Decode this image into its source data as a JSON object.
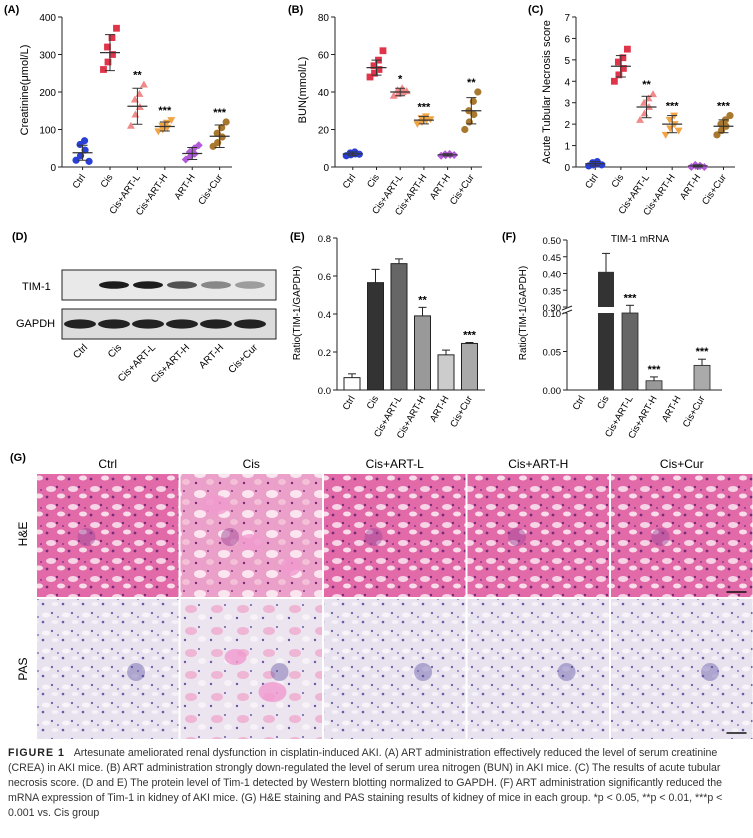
{
  "panelA": {
    "label": "(A)",
    "ylabel": "Creatinine(μmol/L)",
    "yticks": [
      "0",
      "100",
      "200",
      "300",
      "400"
    ],
    "groups": [
      "Ctrl",
      "Cis",
      "Cis+ART-L",
      "Cis+ART-H",
      "ART-H",
      "Cis+Cur"
    ],
    "sig": [
      "",
      "",
      "**",
      "***",
      "",
      "***"
    ]
  },
  "panelB": {
    "label": "(B)",
    "ylabel": "BUN(mmol/L)",
    "yticks": [
      "0",
      "20",
      "40",
      "60",
      "80"
    ],
    "groups": [
      "Ctrl",
      "Cis",
      "Cis+ART-L",
      "Cis+ART-H",
      "ART-H",
      "Cis+Cur"
    ],
    "sig": [
      "",
      "",
      "*",
      "***",
      "",
      "**"
    ]
  },
  "panelC": {
    "label": "(C)",
    "ylabel": "Acute Tubular Necrosis score",
    "yticks": [
      "0",
      "1",
      "2",
      "3",
      "4",
      "5",
      "6",
      "7"
    ],
    "groups": [
      "Ctrl",
      "Cis",
      "Cis+ART-L",
      "Cis+ART-H",
      "ART-H",
      "Cis+Cur"
    ],
    "sig": [
      "",
      "",
      "**",
      "***",
      "",
      "***"
    ]
  },
  "panelD": {
    "label": "(D)",
    "bands": [
      "TIM-1",
      "GAPDH"
    ],
    "lanes": [
      "Ctrl",
      "Cis",
      "Cis+ART-L",
      "Cis+ART-H",
      "ART-H",
      "Cis+Cur"
    ]
  },
  "panelE": {
    "label": "(E)",
    "ylabel": "Ratio(TIM-1/GAPDH)",
    "yticks": [
      "0.0",
      "0.2",
      "0.4",
      "0.6",
      "0.8"
    ],
    "groups": [
      "Ctrl",
      "Cis",
      "Cis+ART-L",
      "Cis+ART-H",
      "ART-H",
      "Cis+Cur"
    ],
    "sig": [
      "",
      "",
      "",
      "**",
      "",
      "***"
    ]
  },
  "panelF": {
    "label": "(F)",
    "title": "TIM-1 mRNA",
    "ylabel": "Ratio(TIM-1/GAPDH)",
    "yticks_low": [
      "0.00",
      "0.05",
      "0.10"
    ],
    "yticks_high": [
      "0.30",
      "0.35",
      "0.40",
      "0.45",
      "0.50"
    ],
    "groups": [
      "Ctrl",
      "Cis",
      "Cis+ART-L",
      "Cis+ART-H",
      "ART-H",
      "Cis+Cur"
    ],
    "sig": [
      "",
      "",
      "***",
      "***",
      "",
      "***"
    ]
  },
  "panelG": {
    "label": "(G)",
    "columns": [
      "Ctrl",
      "Cis",
      "Cis+ART-L",
      "Cis+ART-H",
      "Cis+Cur"
    ],
    "rows": [
      "H&E",
      "PAS"
    ]
  },
  "caption": {
    "fig": "FIGURE 1",
    "text": "Artesunate ameliorated renal dysfunction in cisplatin-induced AKI. (A) ART administration effectively reduced the level of serum creatinine (CREA) in AKI mice. (B) ART administration strongly down-regulated the level of serum urea nitrogen (BUN) in AKI mice. (C) The results of acute tubular necrosis score. (D and E) The protein level of Tim-1 detected by Western blotting normalized to GAPDH. (F) ART administration significantly reduced the mRNA expression of Tim-1 in kidney of AKI mice. (G) H&E staining and PAS staining results of kidney of mice in each group. *p < 0.05, **p < 0.01, ***p < 0.001 vs. Cis group"
  },
  "chart_data": [
    {
      "type": "scatter",
      "panel": "A",
      "ylabel": "Creatinine(μmol/L)",
      "ylim": [
        0,
        400
      ],
      "categories": [
        "Ctrl",
        "Cis",
        "Cis+ART-L",
        "Cis+ART-H",
        "ART-H",
        "Cis+Cur"
      ],
      "colors": [
        "#2a3fd6",
        "#e0344a",
        "#f08a8a",
        "#f0a444",
        "#b25bd8",
        "#a8782e"
      ],
      "means": [
        38,
        305,
        162,
        108,
        36,
        82
      ],
      "sd": [
        20,
        48,
        48,
        12,
        16,
        30
      ],
      "points": [
        [
          18,
          30,
          45,
          60,
          70,
          15
        ],
        [
          260,
          280,
          300,
          320,
          345,
          370
        ],
        [
          110,
          140,
          160,
          180,
          195,
          220
        ],
        [
          95,
          100,
          105,
          110,
          118,
          125
        ],
        [
          20,
          28,
          35,
          40,
          50,
          58
        ],
        [
          55,
          65,
          80,
          90,
          105,
          120
        ]
      ]
    },
    {
      "type": "scatter",
      "panel": "B",
      "ylabel": "BUN(mmol/L)",
      "ylim": [
        0,
        80
      ],
      "categories": [
        "Ctrl",
        "Cis",
        "Cis+ART-L",
        "Cis+ART-H",
        "ART-H",
        "Cis+Cur"
      ],
      "colors": [
        "#2a3fd6",
        "#e0344a",
        "#f08a8a",
        "#f0a444",
        "#b25bd8",
        "#a8782e"
      ],
      "means": [
        7,
        53,
        40,
        25,
        6.5,
        30
      ],
      "sd": [
        1,
        4,
        2,
        2,
        0.6,
        7
      ],
      "points": [
        [
          6,
          6.5,
          7,
          7.5,
          8,
          6.8
        ],
        [
          48,
          50,
          52,
          54,
          57,
          62
        ],
        [
          38,
          39,
          40,
          41,
          42,
          40.5
        ],
        [
          23,
          24,
          25,
          26,
          27,
          25.5
        ],
        [
          6,
          6.3,
          6.5,
          6.8,
          7,
          6.4
        ],
        [
          20,
          24,
          28,
          30,
          35,
          40
        ]
      ]
    },
    {
      "type": "scatter",
      "panel": "C",
      "ylabel": "Acute Tubular Necrosis score",
      "ylim": [
        0,
        7
      ],
      "categories": [
        "Ctrl",
        "Cis",
        "Cis+ART-L",
        "Cis+ART-H",
        "ART-H",
        "Cis+Cur"
      ],
      "colors": [
        "#2a3fd6",
        "#e0344a",
        "#f08a8a",
        "#f0a444",
        "#b25bd8",
        "#a8782e"
      ],
      "means": [
        0.15,
        4.7,
        2.8,
        2.0,
        0.05,
        1.9
      ],
      "sd": [
        0.1,
        0.5,
        0.5,
        0.4,
        0.05,
        0.3
      ],
      "points": [
        [
          0.05,
          0.1,
          0.15,
          0.2,
          0.25,
          0.1
        ],
        [
          4.0,
          4.3,
          4.6,
          4.9,
          5.1,
          5.5
        ],
        [
          2.2,
          2.5,
          2.8,
          3.0,
          3.2,
          3.4
        ],
        [
          1.5,
          1.8,
          2.0,
          2.2,
          2.4,
          1.7
        ],
        [
          0,
          0.05,
          0.05,
          0.1,
          0.05,
          0
        ],
        [
          1.5,
          1.7,
          1.9,
          2.0,
          2.2,
          2.4
        ]
      ]
    },
    {
      "type": "bar",
      "panel": "E",
      "ylabel": "Ratio(TIM-1/GAPDH)",
      "ylim": [
        0,
        0.8
      ],
      "categories": [
        "Ctrl",
        "Cis",
        "Cis+ART-L",
        "Cis+ART-H",
        "ART-H",
        "Cis+Cur"
      ],
      "values": [
        0.065,
        0.565,
        0.665,
        0.39,
        0.185,
        0.245
      ],
      "errors": [
        0.02,
        0.07,
        0.025,
        0.045,
        0.025,
        0.005
      ],
      "fills": [
        "#ffffff",
        "#333333",
        "#666666",
        "#999999",
        "#cccccc",
        "#aaaaaa"
      ]
    },
    {
      "type": "bar",
      "panel": "F",
      "title": "TIM-1 mRNA",
      "ylabel": "Ratio(TIM-1/GAPDH)",
      "broken_axis": [
        0.1,
        0.3
      ],
      "categories": [
        "Ctrl",
        "Cis",
        "Cis+ART-L",
        "Cis+ART-H",
        "ART-H",
        "Cis+Cur"
      ],
      "values": [
        0.0,
        0.405,
        0.1,
        0.012,
        0.0,
        0.032
      ],
      "errors": [
        0,
        0.055,
        0.01,
        0.005,
        0,
        0.008
      ],
      "fills": [
        "#ffffff",
        "#333333",
        "#666666",
        "#999999",
        "#cccccc",
        "#aaaaaa"
      ]
    }
  ]
}
